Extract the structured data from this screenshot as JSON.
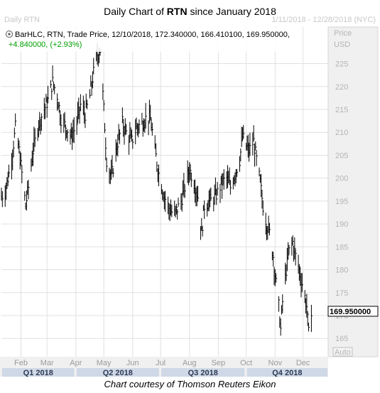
{
  "header": {
    "title_prefix": "Daily Chart of ",
    "title_symbol": "RTN",
    "title_suffix": " since January 2018",
    "left_label": "Daily RTN",
    "right_label": "1/11/2018 - 12/28/2018 (NYC)"
  },
  "legend": {
    "line1": "BarHLC, RTN, Trade Price, 12/10/2018, 172.340000, 166.410100, 169.950000,",
    "line2": "+4.840000, (+2.93%)"
  },
  "axis": {
    "price_label": "Price",
    "currency_label": "USD",
    "auto_label": "Auto",
    "last_price_label": "169.950000"
  },
  "footer": {
    "caption": "Chart courtesy of Thomson Reuters Eikon"
  },
  "colors": {
    "bars": "#000000",
    "change_positive": "#00a000",
    "grid": "#e0e0e0",
    "quarter_band": "#cfd8e6",
    "axis_panel": "#f0f0f0"
  },
  "chart_data": {
    "type": "bar",
    "style": "HLC",
    "symbol": "RTN",
    "x_range": [
      "2018-01-11",
      "2018-12-28"
    ],
    "ylim": [
      161,
      233
    ],
    "yticks": [
      165,
      170,
      175,
      180,
      185,
      190,
      195,
      200,
      205,
      210,
      215,
      220,
      225
    ],
    "months": [
      {
        "label": "Feb",
        "date": "2018-02-01"
      },
      {
        "label": "Mar",
        "date": "2018-03-01"
      },
      {
        "label": "Apr",
        "date": "2018-04-01"
      },
      {
        "label": "May",
        "date": "2018-05-01"
      },
      {
        "label": "Jun",
        "date": "2018-06-01"
      },
      {
        "label": "Jul",
        "date": "2018-07-01"
      },
      {
        "label": "Aug",
        "date": "2018-08-01"
      },
      {
        "label": "Sep",
        "date": "2018-09-01"
      },
      {
        "label": "Oct",
        "date": "2018-10-01"
      },
      {
        "label": "Nov",
        "date": "2018-11-01"
      },
      {
        "label": "Dec",
        "date": "2018-12-01"
      }
    ],
    "quarters": [
      {
        "label": "Q1 2018",
        "start": "2018-01-11",
        "end": "2018-03-31"
      },
      {
        "label": "Q2 2018",
        "start": "2018-04-01",
        "end": "2018-06-30"
      },
      {
        "label": "Q3 2018",
        "start": "2018-07-01",
        "end": "2018-09-30"
      },
      {
        "label": "Q4 2018",
        "start": "2018-10-01",
        "end": "2018-12-28"
      }
    ],
    "last": {
      "date": "2018-12-10",
      "high": 172.34,
      "low": 166.4101,
      "close": 169.95,
      "change": 4.84,
      "change_pct": 2.93
    },
    "close_path": [
      {
        "date": "2018-01-11",
        "close": 196
      },
      {
        "date": "2018-01-15",
        "close": 197
      },
      {
        "date": "2018-01-22",
        "close": 204
      },
      {
        "date": "2018-01-26",
        "close": 211
      },
      {
        "date": "2018-01-30",
        "close": 206
      },
      {
        "date": "2018-02-02",
        "close": 201
      },
      {
        "date": "2018-02-06",
        "close": 194
      },
      {
        "date": "2018-02-09",
        "close": 198
      },
      {
        "date": "2018-02-14",
        "close": 206
      },
      {
        "date": "2018-02-20",
        "close": 212
      },
      {
        "date": "2018-02-26",
        "close": 215
      },
      {
        "date": "2018-03-02",
        "close": 217
      },
      {
        "date": "2018-03-07",
        "close": 221
      },
      {
        "date": "2018-03-12",
        "close": 218
      },
      {
        "date": "2018-03-16",
        "close": 213
      },
      {
        "date": "2018-03-22",
        "close": 211
      },
      {
        "date": "2018-03-27",
        "close": 209
      },
      {
        "date": "2018-04-02",
        "close": 212
      },
      {
        "date": "2018-04-06",
        "close": 216
      },
      {
        "date": "2018-04-11",
        "close": 214
      },
      {
        "date": "2018-04-16",
        "close": 218
      },
      {
        "date": "2018-04-20",
        "close": 223
      },
      {
        "date": "2018-04-24",
        "close": 227
      },
      {
        "date": "2018-04-27",
        "close": 228
      },
      {
        "date": "2018-05-01",
        "close": 215
      },
      {
        "date": "2018-05-04",
        "close": 204
      },
      {
        "date": "2018-05-09",
        "close": 200
      },
      {
        "date": "2018-05-15",
        "close": 207
      },
      {
        "date": "2018-05-21",
        "close": 212
      },
      {
        "date": "2018-05-25",
        "close": 210
      },
      {
        "date": "2018-05-31",
        "close": 208
      },
      {
        "date": "2018-06-05",
        "close": 211
      },
      {
        "date": "2018-06-11",
        "close": 212
      },
      {
        "date": "2018-06-15",
        "close": 213
      },
      {
        "date": "2018-06-20",
        "close": 213
      },
      {
        "date": "2018-06-25",
        "close": 206
      },
      {
        "date": "2018-06-29",
        "close": 201
      },
      {
        "date": "2018-07-05",
        "close": 196
      },
      {
        "date": "2018-07-11",
        "close": 193
      },
      {
        "date": "2018-07-16",
        "close": 192
      },
      {
        "date": "2018-07-23",
        "close": 195
      },
      {
        "date": "2018-07-27",
        "close": 198
      },
      {
        "date": "2018-08-01",
        "close": 202
      },
      {
        "date": "2018-08-06",
        "close": 199
      },
      {
        "date": "2018-08-10",
        "close": 196
      },
      {
        "date": "2018-08-14",
        "close": 188
      },
      {
        "date": "2018-08-17",
        "close": 194
      },
      {
        "date": "2018-08-23",
        "close": 195
      },
      {
        "date": "2018-08-29",
        "close": 196
      },
      {
        "date": "2018-09-05",
        "close": 199
      },
      {
        "date": "2018-09-10",
        "close": 200
      },
      {
        "date": "2018-09-14",
        "close": 198
      },
      {
        "date": "2018-09-19",
        "close": 201
      },
      {
        "date": "2018-09-24",
        "close": 204
      },
      {
        "date": "2018-09-27",
        "close": 209
      },
      {
        "date": "2018-10-01",
        "close": 207
      },
      {
        "date": "2018-10-04",
        "close": 206
      },
      {
        "date": "2018-10-09",
        "close": 208
      },
      {
        "date": "2018-10-12",
        "close": 204
      },
      {
        "date": "2018-10-16",
        "close": 199
      },
      {
        "date": "2018-10-19",
        "close": 194
      },
      {
        "date": "2018-10-23",
        "close": 190
      },
      {
        "date": "2018-10-26",
        "close": 188
      },
      {
        "date": "2018-10-30",
        "close": 183
      },
      {
        "date": "2018-11-02",
        "close": 177
      },
      {
        "date": "2018-11-05",
        "close": 172
      },
      {
        "date": "2018-11-07",
        "close": 167
      },
      {
        "date": "2018-11-09",
        "close": 173
      },
      {
        "date": "2018-11-13",
        "close": 180
      },
      {
        "date": "2018-11-16",
        "close": 184
      },
      {
        "date": "2018-11-20",
        "close": 186
      },
      {
        "date": "2018-11-23",
        "close": 183
      },
      {
        "date": "2018-11-27",
        "close": 180
      },
      {
        "date": "2018-11-30",
        "close": 177
      },
      {
        "date": "2018-12-03",
        "close": 174
      },
      {
        "date": "2018-12-05",
        "close": 172
      },
      {
        "date": "2018-12-07",
        "close": 166
      },
      {
        "date": "2018-12-10",
        "close": 169.95
      }
    ]
  }
}
